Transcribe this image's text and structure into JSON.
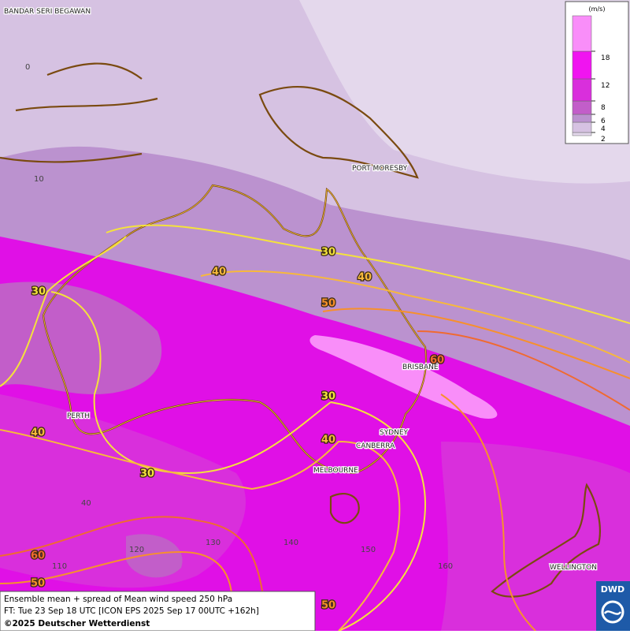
{
  "map": {
    "cities": [
      "BANDAR SERI BEGAWAN",
      "PORT MORESBY",
      "BRISBANE",
      "SYDNEY",
      "CANBERRA",
      "MELBOURNE",
      "PERTH",
      "WELLINGTON"
    ],
    "grid_labels": [
      "0",
      "10",
      "40",
      "110",
      "120",
      "130",
      "140",
      "150",
      "160"
    ],
    "contour_labels": [
      30,
      40,
      40,
      50,
      60,
      30,
      30,
      40,
      40,
      30,
      60,
      50,
      50
    ],
    "contour_colors": {
      "30": "#f4e23c",
      "40": "#f7b83c",
      "50": "#f7902c",
      "60": "#f06a30"
    }
  },
  "legend": {
    "unit": "(m/s)",
    "ticks": [
      2,
      4,
      6,
      8,
      12,
      18
    ],
    "colors": [
      "#e4d8ec",
      "#d6c2e2",
      "#bb92cf",
      "#c25ec9",
      "#d92fdc",
      "#f014f0",
      "#f98ef9"
    ]
  },
  "footer": {
    "line1": "Ensemble mean + spread of Mean wind speed 250 hPa",
    "line2": "FT: Tue 23 Sep 18 UTC [ICON EPS 2025 Sep 17 00UTC +162h]",
    "line3": "©2025 Deutscher Wetterdienst",
    "logo": "DWD"
  }
}
